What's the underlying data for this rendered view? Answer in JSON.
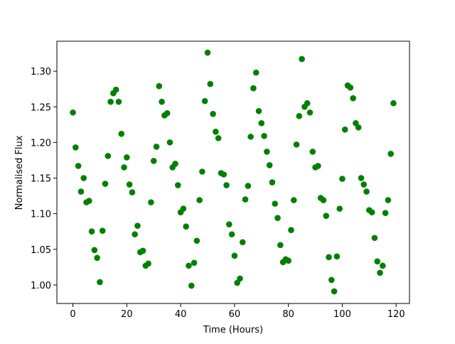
{
  "chart_data": {
    "type": "scatter",
    "x_label": "Time (Hours)",
    "y_label": "Normalised Flux",
    "color": "#008000",
    "xlim": [
      -5.95,
      124.95
    ],
    "xticks": [
      0,
      20,
      40,
      60,
      80,
      100,
      120
    ],
    "ylim": [
      0.974,
      1.342
    ],
    "yticks": [
      {
        "value": 1.0,
        "label": "1.00"
      },
      1.05,
      {
        "value": 1.1,
        "label": "1.10"
      },
      1.15,
      {
        "value": 1.2,
        "label": "1.20"
      },
      1.25,
      {
        "value": 1.3,
        "label": "1.30"
      }
    ],
    "x": [
      0,
      1,
      2,
      3,
      4,
      5,
      6,
      7,
      8,
      9,
      10,
      11,
      12,
      13,
      14,
      15,
      16,
      17,
      18,
      19,
      20,
      21,
      22,
      23,
      24,
      25,
      26,
      27,
      28,
      29,
      30,
      31,
      32,
      33,
      34,
      35,
      36,
      37,
      38,
      39,
      40,
      41,
      42,
      43,
      44,
      45,
      46,
      47,
      48,
      49,
      50,
      51,
      52,
      53,
      54,
      55,
      56,
      57,
      58,
      59,
      60,
      61,
      62,
      63,
      64,
      65,
      66,
      67,
      68,
      69,
      70,
      71,
      72,
      73,
      74,
      75,
      76,
      77,
      78,
      79,
      80,
      81,
      82,
      83,
      84,
      85,
      86,
      87,
      88,
      89,
      90,
      91,
      92,
      93,
      94,
      95,
      96,
      97,
      98,
      99,
      100,
      101,
      102,
      103,
      104,
      105,
      106,
      107,
      108,
      109,
      110,
      111,
      112,
      113,
      114,
      115,
      116,
      117,
      118,
      119
    ],
    "values": [
      1.242,
      1.193,
      1.167,
      1.131,
      1.15,
      1.116,
      1.118,
      1.075,
      1.049,
      1.038,
      1.004,
      1.076,
      1.142,
      1.181,
      1.257,
      1.269,
      1.274,
      1.257,
      1.212,
      1.165,
      1.179,
      1.141,
      1.13,
      1.071,
      1.083,
      1.046,
      1.048,
      1.027,
      1.03,
      1.116,
      1.174,
      1.194,
      1.279,
      1.257,
      1.238,
      1.241,
      1.2,
      1.165,
      1.17,
      1.14,
      1.102,
      1.107,
      1.082,
      1.027,
      0.999,
      1.031,
      1.062,
      1.119,
      1.159,
      1.258,
      1.326,
      1.282,
      1.24,
      1.215,
      1.206,
      1.157,
      1.155,
      1.14,
      1.085,
      1.071,
      1.041,
      1.003,
      1.009,
      1.06,
      1.12,
      1.139,
      1.208,
      1.276,
      1.298,
      1.244,
      1.227,
      1.209,
      1.187,
      1.168,
      1.144,
      1.114,
      1.094,
      1.056,
      1.032,
      1.036,
      1.034,
      1.077,
      1.119,
      1.197,
      1.237,
      1.317,
      1.25,
      1.255,
      1.242,
      1.187,
      1.165,
      1.167,
      1.122,
      1.119,
      1.097,
      1.039,
      1.007,
      0.991,
      1.04,
      1.107,
      1.149,
      1.218,
      1.28,
      1.277,
      1.262,
      1.227,
      1.221,
      1.15,
      1.141,
      1.131,
      1.105,
      1.102,
      1.066,
      1.033,
      1.017,
      1.027,
      1.101,
      1.119,
      1.184,
      1.255
    ]
  }
}
